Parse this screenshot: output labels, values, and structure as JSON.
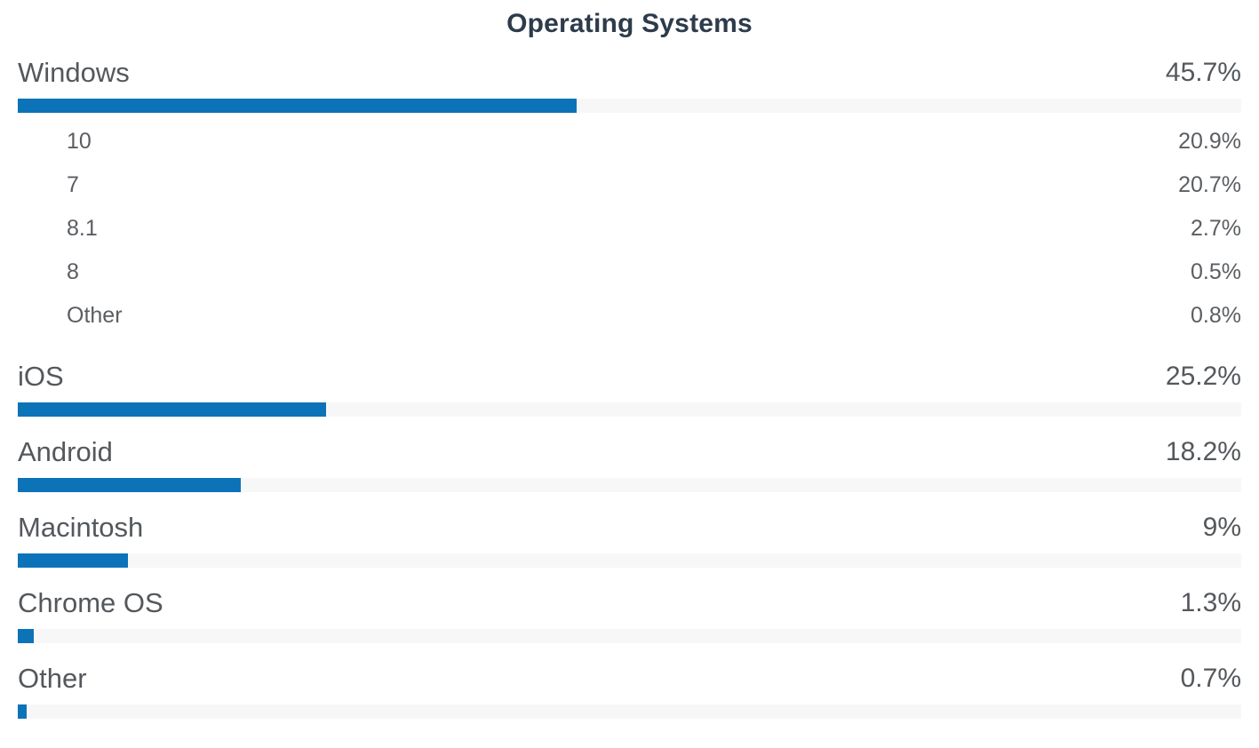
{
  "title": "Operating Systems",
  "colors": {
    "bar_fill": "#0d73b8",
    "bar_track": "#f7f7f7",
    "title_text": "#2d3b4b",
    "label_text": "#54585c"
  },
  "chart_data": {
    "type": "bar",
    "orientation": "horizontal",
    "title": "Operating Systems",
    "value_unit": "percent",
    "axis_range": [
      0,
      100
    ],
    "grid": false,
    "legend": false,
    "items": [
      {
        "label": "Windows",
        "value": 45.7,
        "value_label": "45.7%",
        "children": [
          {
            "label": "10",
            "value": 20.9,
            "value_label": "20.9%"
          },
          {
            "label": "7",
            "value": 20.7,
            "value_label": "20.7%"
          },
          {
            "label": "8.1",
            "value": 2.7,
            "value_label": "2.7%"
          },
          {
            "label": "8",
            "value": 0.5,
            "value_label": "0.5%"
          },
          {
            "label": "Other",
            "value": 0.8,
            "value_label": "0.8%"
          }
        ]
      },
      {
        "label": "iOS",
        "value": 25.2,
        "value_label": "25.2%",
        "children": []
      },
      {
        "label": "Android",
        "value": 18.2,
        "value_label": "18.2%",
        "children": []
      },
      {
        "label": "Macintosh",
        "value": 9,
        "value_label": "9%",
        "children": []
      },
      {
        "label": "Chrome OS",
        "value": 1.3,
        "value_label": "1.3%",
        "children": []
      },
      {
        "label": "Other",
        "value": 0.7,
        "value_label": "0.7%",
        "children": []
      }
    ]
  }
}
